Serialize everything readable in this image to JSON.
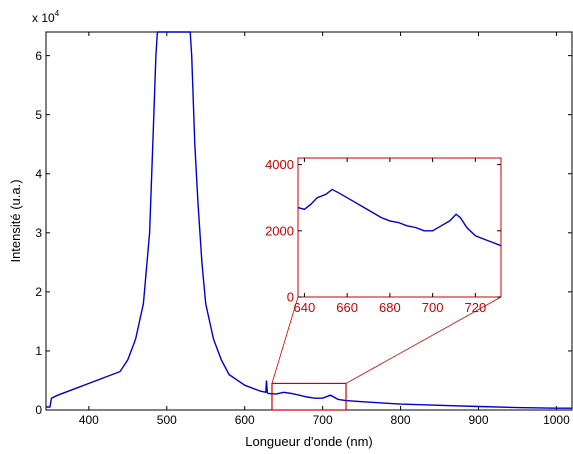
{
  "figure": {
    "xlabel": "Longueur d'onde (nm)",
    "ylabel": "Intensité (u.a.)",
    "y_exponent_base": "x 10",
    "y_exponent_power": "4"
  },
  "colors": {
    "series": "#0000cc",
    "inset": "#cc0000",
    "axes": "#000000"
  },
  "chart_data": [
    {
      "type": "line",
      "title": "",
      "xlabel": "Longueur d'onde (nm)",
      "ylabel": "Intensité (u.a.)",
      "y_multiplier": 10000,
      "xlim": [
        345,
        1020
      ],
      "ylim": [
        0,
        6.4
      ],
      "xticks": [
        400,
        500,
        600,
        700,
        800,
        900,
        1000
      ],
      "xtick_labels": [
        "400",
        "500",
        "600",
        "700",
        "800",
        "900",
        "1000"
      ],
      "yticks": [
        0,
        1,
        2,
        3,
        4,
        5,
        6
      ],
      "ytick_labels": [
        "0",
        "1",
        "2",
        "3",
        "4",
        "5",
        "6"
      ],
      "grid": false,
      "series": [
        {
          "x": [
            345,
            350,
            352,
            360,
            380,
            400,
            420,
            440,
            450,
            460,
            470,
            478,
            482,
            486,
            488,
            530,
            532,
            536,
            540,
            545,
            550,
            560,
            570,
            580,
            600,
            620,
            627,
            628,
            629,
            630,
            640,
            650,
            660,
            670,
            680,
            690,
            700,
            710,
            720,
            730,
            750,
            800,
            850,
            900,
            950,
            1000,
            1020
          ],
          "y": [
            0.05,
            0.05,
            0.2,
            0.25,
            0.35,
            0.45,
            0.55,
            0.65,
            0.85,
            1.2,
            1.8,
            3.0,
            4.5,
            6.0,
            6.4,
            6.4,
            6.0,
            4.5,
            3.5,
            2.5,
            1.8,
            1.2,
            0.85,
            0.6,
            0.42,
            0.32,
            0.3,
            0.5,
            0.3,
            0.28,
            0.27,
            0.3,
            0.28,
            0.25,
            0.22,
            0.2,
            0.2,
            0.25,
            0.18,
            0.16,
            0.14,
            0.1,
            0.08,
            0.06,
            0.04,
            0.03,
            0.03
          ]
        }
      ],
      "highlight_box": {
        "x": [
          635,
          730
        ],
        "y": [
          0,
          0.45
        ]
      }
    },
    {
      "type": "line",
      "title": "",
      "xlim": [
        637,
        732
      ],
      "ylim": [
        0,
        4200
      ],
      "xticks": [
        640,
        660,
        680,
        700,
        720
      ],
      "xtick_labels": [
        "640",
        "660",
        "680",
        "700",
        "720"
      ],
      "yticks": [
        0,
        2000,
        4000
      ],
      "ytick_labels": [
        "0",
        "2000",
        "4000"
      ],
      "grid": false,
      "series": [
        {
          "x": [
            637,
            640,
            643,
            646,
            650,
            653,
            656,
            660,
            664,
            668,
            672,
            676,
            680,
            684,
            688,
            692,
            696,
            700,
            704,
            708,
            711,
            713,
            716,
            720,
            724,
            728,
            732
          ],
          "y": [
            2700,
            2650,
            2800,
            3000,
            3100,
            3250,
            3150,
            3000,
            2850,
            2700,
            2550,
            2400,
            2300,
            2250,
            2150,
            2100,
            2000,
            2000,
            2150,
            2300,
            2500,
            2400,
            2100,
            1850,
            1750,
            1650,
            1550
          ]
        }
      ]
    }
  ]
}
